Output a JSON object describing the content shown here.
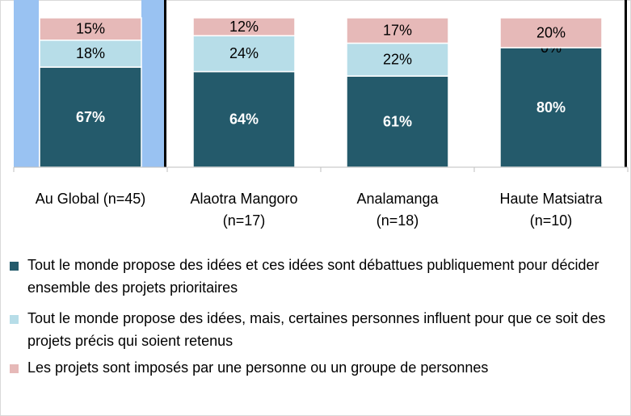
{
  "chart_data": {
    "type": "stacked_bar",
    "categories": [
      "Au Global (n=45)",
      "Alaotra Mangoro (n=17)",
      "Analamanga (n=18)",
      "Haute Matsiatra (n=10)"
    ],
    "series": [
      {
        "name": "Tout le monde propose des idées et ces idées sont débattues publiquement pour décider ensemble des projets prioritaires",
        "color": "#245a6b",
        "values": [
          67,
          64,
          61,
          80
        ],
        "value_labels": [
          "67%",
          "64%",
          "61%",
          "80%"
        ]
      },
      {
        "name": "Tout le monde propose des idées, mais, certaines personnes influent pour que ce soit des projets précis qui soient retenus",
        "color": "#b7dde8",
        "values": [
          18,
          24,
          22,
          0
        ],
        "value_labels": [
          "18%",
          "24%",
          "22%",
          "0%"
        ]
      },
      {
        "name": "Les projets sont imposés par une personne ou un groupe de personnes",
        "color": "#e6b9b8",
        "values": [
          15,
          12,
          17,
          20
        ],
        "value_labels": [
          "15%",
          "12%",
          "17%",
          "20%"
        ]
      }
    ],
    "ylim": [
      0,
      100
    ]
  }
}
